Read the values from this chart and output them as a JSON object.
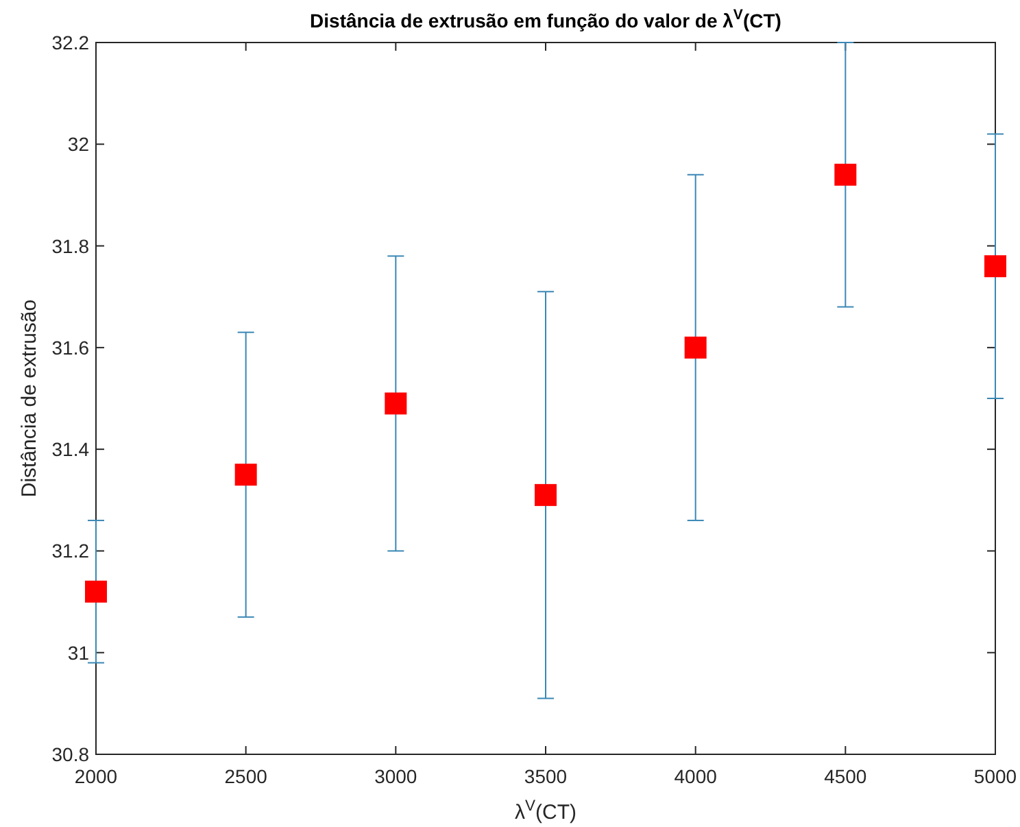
{
  "chart_data": {
    "type": "scatter",
    "title": "Distância de extrusão em função do valor de λ$^{V}$(CT)",
    "xlabel": "λ$^{V}$(CT)",
    "ylabel": "Distância de extrusão",
    "x": [
      2000,
      2500,
      3000,
      3500,
      4000,
      4500,
      5000
    ],
    "series": [
      {
        "color": "#ff0000",
        "values": [
          31.12,
          31.35,
          31.49,
          31.31,
          31.6,
          31.94,
          31.76
        ],
        "errors": [
          0.14,
          0.28,
          0.29,
          0.4,
          0.34,
          0.26,
          0.26
        ]
      }
    ],
    "marker": "square",
    "xlim": [
      2000,
      5000
    ],
    "xticks": [
      2000,
      2500,
      3000,
      3500,
      4000,
      4500,
      5000
    ],
    "ylim": [
      30.8,
      32.2
    ],
    "yticks": [
      30.8,
      31,
      31.2,
      31.4,
      31.6,
      31.8,
      32,
      32.2
    ],
    "grid": false
  }
}
